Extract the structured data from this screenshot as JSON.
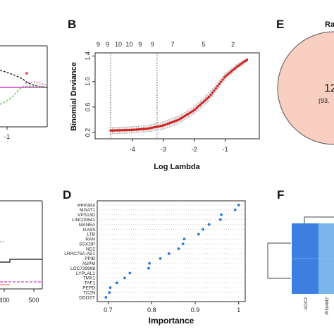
{
  "panels": {
    "B": "B",
    "D": "D",
    "E": "E",
    "F": "F"
  },
  "colors": {
    "cv_points": "#d62020",
    "error_bars": "#b0b0b0",
    "importance_points": "#2b7bd4",
    "venn_fill": "#f8cfc0",
    "heatmap_dark": "#3d7fe0",
    "heatmap_light": "#7ab6ec",
    "panel_a_magenta": "#d23ad2",
    "panel_a_green": "#5fcf3f"
  },
  "fragments": {
    "panel_a_xtick": "-1",
    "panel_c_xticks": [
      "400",
      "500"
    ],
    "panel_e_title": "Ra",
    "panel_e_count": "12",
    "panel_e_pct": "(93.",
    "panel_f_labels": [
      "AOC2",
      "PIGAM2"
    ]
  },
  "chart_data": [
    {
      "panel": "B",
      "type": "scatter",
      "xlabel": "Log Lambda",
      "ylabel": "Binomial Deviance",
      "xticks": [
        "-4",
        "-3",
        "-2",
        "-1"
      ],
      "yticks": [
        "0.2",
        "0.6",
        "1.0",
        "1.4"
      ],
      "top_counts": [
        "9",
        "9",
        "10",
        "10",
        "9",
        "9",
        "7",
        "5",
        "2"
      ],
      "top_count_x": [
        -5.1,
        -4.8,
        -4.45,
        -4.1,
        -3.75,
        -3.35,
        -2.7,
        -1.7,
        -0.75
      ],
      "xlim": [
        -5.2,
        0.1
      ],
      "ylim": [
        0.1,
        1.45
      ],
      "vlines": [
        -4.7,
        -3.2
      ],
      "curve": {
        "x": [
          -4.7,
          -4.0,
          -3.5,
          -3.0,
          -2.5,
          -2.0,
          -1.5,
          -1.0,
          -0.6,
          -0.3
        ],
        "y": [
          0.23,
          0.24,
          0.26,
          0.31,
          0.4,
          0.55,
          0.77,
          1.08,
          1.24,
          1.34
        ],
        "err": [
          0.05,
          0.05,
          0.05,
          0.06,
          0.06,
          0.06,
          0.07,
          0.05,
          0.04,
          0.03
        ]
      },
      "n_points": 80
    },
    {
      "panel": "D",
      "type": "scatter",
      "xlabel": "Importance",
      "xticks": [
        "0.7",
        "0.8",
        "0.9",
        "1"
      ],
      "xlim": [
        0.675,
        1.015
      ],
      "genes": [
        "PPP2R4",
        "MGAT1",
        "VPS13D",
        "LINC00641",
        "MANEA",
        "GAS5",
        "LTB",
        "RAN",
        "SSX2IP",
        "ND2",
        "LRRC75A-AS1",
        "PPIB",
        "ASPM",
        "LOC729998",
        "LYPLAL1",
        "TMX1",
        "TAF1",
        "PEPD",
        "TC2N",
        "DDOST"
      ],
      "importance": [
        1.0,
        0.992,
        0.96,
        0.958,
        0.932,
        0.918,
        0.908,
        0.875,
        0.872,
        0.862,
        0.84,
        0.82,
        0.795,
        0.793,
        0.75,
        0.738,
        0.72,
        0.705,
        0.703,
        0.695
      ]
    }
  ]
}
